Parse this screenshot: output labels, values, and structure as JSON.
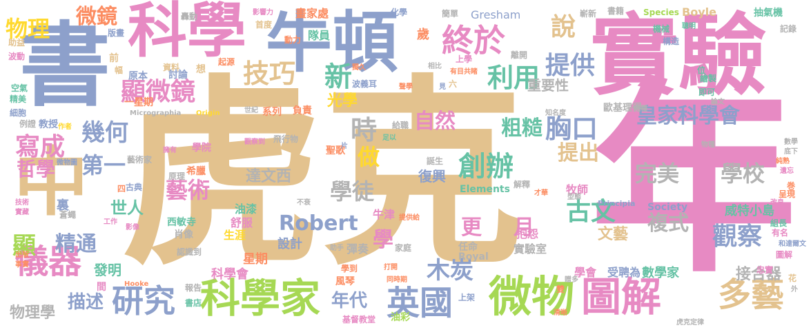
{
  "palette": {
    "tan": "#E3C28E",
    "pink": "#E78AC3",
    "blue": "#8DA0CB",
    "green": "#A6D854",
    "orange": "#FC8D62",
    "teal": "#66C2A5",
    "yellow": "#FFD92F",
    "gray": "#B3B3B3"
  },
  "words": [
    {
      "text": "虎克",
      "color": "tan"
    },
    {
      "text": "年",
      "color": "pink"
    },
    {
      "text": "實驗",
      "color": "pink"
    },
    {
      "text": "書",
      "color": "blue"
    },
    {
      "text": "科學",
      "color": "pink"
    },
    {
      "text": "牛頓",
      "color": "blue"
    },
    {
      "text": "中",
      "color": "tan"
    },
    {
      "text": "科學家",
      "color": "green"
    },
    {
      "text": "微物",
      "color": "green"
    },
    {
      "text": "圖解",
      "color": "pink"
    },
    {
      "text": "英國",
      "color": "blue"
    },
    {
      "text": "終於",
      "color": "pink"
    },
    {
      "text": "顯微鏡",
      "color": "pink"
    },
    {
      "text": "儀器",
      "color": "pink"
    },
    {
      "text": "研究",
      "color": "blue"
    },
    {
      "text": "多藝",
      "color": "tan"
    },
    {
      "text": "皇家科學會",
      "color": "blue"
    },
    {
      "text": "幾何",
      "color": "blue"
    },
    {
      "text": "寫成",
      "color": "pink"
    },
    {
      "text": "技巧",
      "color": "tan"
    },
    {
      "text": "提供",
      "color": "blue"
    },
    {
      "text": "說",
      "color": "tan"
    },
    {
      "text": "微鏡",
      "color": "orange"
    },
    {
      "text": "物理",
      "color": "yellow"
    },
    {
      "text": "新",
      "color": "teal"
    },
    {
      "text": "利用",
      "color": "teal"
    },
    {
      "text": "時",
      "color": "gray"
    },
    {
      "text": "做",
      "color": "yellow"
    },
    {
      "text": "胸口",
      "color": "blue"
    },
    {
      "text": "創辦",
      "color": "teal"
    },
    {
      "text": "自然",
      "color": "pink"
    },
    {
      "text": "粗糙",
      "color": "teal"
    },
    {
      "text": "提出",
      "color": "tan"
    },
    {
      "text": "學徒",
      "color": "gray"
    },
    {
      "text": "完美",
      "color": "gray"
    },
    {
      "text": "學校",
      "color": "gray"
    },
    {
      "text": "藝術",
      "color": "pink"
    },
    {
      "text": "第一",
      "color": "blue"
    },
    {
      "text": "哲學",
      "color": "pink"
    },
    {
      "text": "古文",
      "color": "teal"
    },
    {
      "text": "觀察",
      "color": "blue"
    },
    {
      "text": "Robert",
      "color": "blue"
    },
    {
      "text": "精通",
      "color": "blue"
    },
    {
      "text": "顯",
      "color": "green"
    },
    {
      "text": "世人",
      "color": "teal"
    },
    {
      "text": "學",
      "color": "pink"
    },
    {
      "text": "更",
      "color": "pink"
    },
    {
      "text": "月",
      "color": "pink"
    },
    {
      "text": "複式",
      "color": "gray"
    },
    {
      "text": "文藝",
      "color": "tan"
    },
    {
      "text": "木炭",
      "color": "blue"
    },
    {
      "text": "年代",
      "color": "blue"
    },
    {
      "text": "描述",
      "color": "blue"
    },
    {
      "text": "接合器",
      "color": "gray"
    },
    {
      "text": "重要性",
      "color": "gray"
    },
    {
      "text": "發明",
      "color": "teal"
    },
    {
      "text": "光學",
      "color": "yellow"
    },
    {
      "text": "達文西",
      "color": "gray"
    },
    {
      "text": "復興",
      "color": "blue"
    },
    {
      "text": "物理學",
      "color": "gray"
    },
    {
      "text": "威特小島",
      "color": "teal"
    },
    {
      "text": "數學家",
      "color": "teal"
    },
    {
      "text": "受聘為",
      "color": "blue"
    },
    {
      "text": "學會",
      "color": "pink"
    },
    {
      "text": "科學會",
      "color": "pink"
    },
    {
      "text": "實驗室",
      "color": "gray"
    },
    {
      "text": "設計",
      "color": "blue"
    },
    {
      "text": "牛津",
      "color": "pink"
    },
    {
      "text": "彈奏",
      "color": "gray"
    },
    {
      "text": "星期",
      "color": "orange"
    },
    {
      "text": "生涯",
      "color": "yellow"
    },
    {
      "text": "肖像",
      "color": "gray"
    },
    {
      "text": "西敏寺",
      "color": "teal"
    },
    {
      "text": "油漆",
      "color": "teal"
    },
    {
      "text": "舒服",
      "color": "pink"
    },
    {
      "text": "家庭",
      "color": "gray"
    },
    {
      "text": "任命",
      "color": "gray"
    },
    {
      "text": "抱怨",
      "color": "pink"
    },
    {
      "text": "牧師",
      "color": "pink"
    },
    {
      "text": "聖歌",
      "color": "orange"
    },
    {
      "text": "Elements",
      "color": "teal"
    },
    {
      "text": "Royal",
      "color": "gray"
    },
    {
      "text": "Society",
      "color": "blue"
    },
    {
      "text": "Principia",
      "color": "blue"
    },
    {
      "text": "Gresham",
      "color": "blue"
    },
    {
      "text": "Species",
      "color": "green"
    },
    {
      "text": "Boyle",
      "color": "tan"
    },
    {
      "text": "Micrographia",
      "color": "gray"
    },
    {
      "text": "Origin",
      "color": "yellow"
    },
    {
      "text": "Hooke",
      "color": "orange"
    },
    {
      "text": "畫家處",
      "color": "orange"
    },
    {
      "text": "歲",
      "color": "orange"
    },
    {
      "text": "隊員",
      "color": "teal"
    },
    {
      "text": "動力",
      "color": "orange"
    },
    {
      "text": "首度",
      "color": "tan"
    },
    {
      "text": "起源",
      "color": "orange"
    },
    {
      "text": "資料",
      "color": "tan"
    },
    {
      "text": "原本",
      "color": "blue"
    },
    {
      "text": "討論",
      "color": "blue"
    },
    {
      "text": "想",
      "color": "tan"
    },
    {
      "text": "教授",
      "color": "blue"
    },
    {
      "text": "一星期",
      "color": "orange"
    },
    {
      "text": "負責",
      "color": "orange"
    },
    {
      "text": "系列",
      "color": "orange"
    },
    {
      "text": "學院",
      "color": "pink"
    },
    {
      "text": "觀察到",
      "color": "pink"
    },
    {
      "text": "飛行物",
      "color": "gray"
    },
    {
      "text": "藝術家",
      "color": "gray"
    },
    {
      "text": "希臘",
      "color": "orange"
    },
    {
      "text": "古典",
      "color": "blue"
    },
    {
      "text": "技術",
      "color": "pink"
    },
    {
      "text": "實藏",
      "color": "pink"
    },
    {
      "text": "裏",
      "color": "blue"
    },
    {
      "text": "工作",
      "color": "pink"
    },
    {
      "text": "影像",
      "color": "pink"
    },
    {
      "text": "出版",
      "color": "orange"
    },
    {
      "text": "事實",
      "color": "orange"
    },
    {
      "text": "間",
      "color": "pink"
    },
    {
      "text": "報告",
      "color": "gray"
    },
    {
      "text": "書店",
      "color": "teal"
    },
    {
      "text": "認識到",
      "color": "gray"
    },
    {
      "text": "風琴",
      "color": "orange"
    },
    {
      "text": "學到",
      "color": "orange"
    },
    {
      "text": "基督教堂",
      "color": "pink"
    },
    {
      "text": "油彩",
      "color": "green"
    },
    {
      "text": "上學",
      "color": "pink"
    },
    {
      "text": "同時期",
      "color": "orange"
    },
    {
      "text": "清晰",
      "color": "orange"
    },
    {
      "text": "虎克定律",
      "color": "gray"
    },
    {
      "text": "忠實",
      "color": "pink"
    },
    {
      "text": "和達爾文",
      "color": "blue"
    },
    {
      "text": "組長",
      "color": "teal"
    },
    {
      "text": "有名",
      "color": "pink"
    },
    {
      "text": "圖解",
      "color": "pink"
    },
    {
      "text": "花",
      "color": "tan"
    },
    {
      "text": "巻",
      "color": "orange"
    },
    {
      "text": "呈現",
      "color": "orange"
    },
    {
      "text": "改良",
      "color": "pink"
    },
    {
      "text": "遺忘",
      "color": "pink"
    },
    {
      "text": "數學",
      "color": "gray"
    },
    {
      "text": "底下",
      "color": "gray"
    },
    {
      "text": "論文",
      "color": "gray"
    },
    {
      "text": "物種",
      "color": "gray"
    },
    {
      "text": "即可",
      "color": "teal"
    },
    {
      "text": "繪製",
      "color": "teal"
    },
    {
      "text": "位",
      "color": "teal"
    },
    {
      "text": "歐基理得",
      "color": "gray"
    },
    {
      "text": "知名度",
      "color": "gray"
    },
    {
      "text": "構造",
      "color": "blue"
    },
    {
      "text": "機械",
      "color": "teal"
    },
    {
      "text": "聰明",
      "color": "teal"
    },
    {
      "text": "嶄新",
      "color": "gray"
    },
    {
      "text": "書籍",
      "color": "gray"
    },
    {
      "text": "抽氣機",
      "color": "teal"
    },
    {
      "text": "記錄",
      "color": "gray"
    },
    {
      "text": "化學",
      "color": "blue"
    },
    {
      "text": "簡單",
      "color": "gray"
    },
    {
      "text": "離開",
      "color": "gray"
    },
    {
      "text": "獨久",
      "color": "orange"
    },
    {
      "text": "波義耳",
      "color": "blue"
    },
    {
      "text": "聲學",
      "color": "orange"
    },
    {
      "text": "見",
      "color": "blue"
    },
    {
      "text": "六",
      "color": "tan"
    },
    {
      "text": "有目共睹",
      "color": "orange"
    },
    {
      "text": "相比",
      "color": "gray"
    },
    {
      "text": "影響力",
      "color": "pink"
    },
    {
      "text": "轟動",
      "color": "gray"
    },
    {
      "text": "版畫",
      "color": "blue"
    },
    {
      "text": "助益",
      "color": "tan"
    },
    {
      "text": "波動",
      "color": "pink"
    },
    {
      "text": "前",
      "color": "tan"
    },
    {
      "text": "幅",
      "color": "tan"
    },
    {
      "text": "空氣",
      "color": "teal"
    },
    {
      "text": "精美",
      "color": "teal"
    },
    {
      "text": "細胞",
      "color": "blue"
    },
    {
      "text": "例證",
      "color": "gray"
    },
    {
      "text": "作者",
      "color": "yellow"
    },
    {
      "text": "世紀",
      "color": "gray"
    },
    {
      "text": "擁有",
      "color": "pink"
    },
    {
      "text": "微物圖",
      "color": "blue"
    },
    {
      "text": "四",
      "color": "orange"
    },
    {
      "text": "蒼蠅",
      "color": "gray"
    },
    {
      "text": "原理",
      "color": "gray"
    },
    {
      "text": "給職",
      "color": "gray"
    },
    {
      "text": "片",
      "color": "blue"
    },
    {
      "text": "足以",
      "color": "teal"
    },
    {
      "text": "誕生",
      "color": "gray"
    },
    {
      "text": "解釋",
      "color": "gray"
    },
    {
      "text": "才華",
      "color": "orange"
    },
    {
      "text": "型態",
      "color": "gray"
    },
    {
      "text": "物種",
      "color": "gray"
    },
    {
      "text": "純熟",
      "color": "orange"
    },
    {
      "text": "不衰",
      "color": "gray"
    },
    {
      "text": "提供給",
      "color": "orange"
    },
    {
      "text": "助手",
      "color": "gray"
    },
    {
      "text": "打開",
      "color": "orange"
    },
    {
      "text": "上架",
      "color": "blue"
    },
    {
      "text": "雙",
      "color": "orange"
    },
    {
      "text": "贈多",
      "color": "gray"
    },
    {
      "text": "外",
      "color": "gray"
    }
  ]
}
